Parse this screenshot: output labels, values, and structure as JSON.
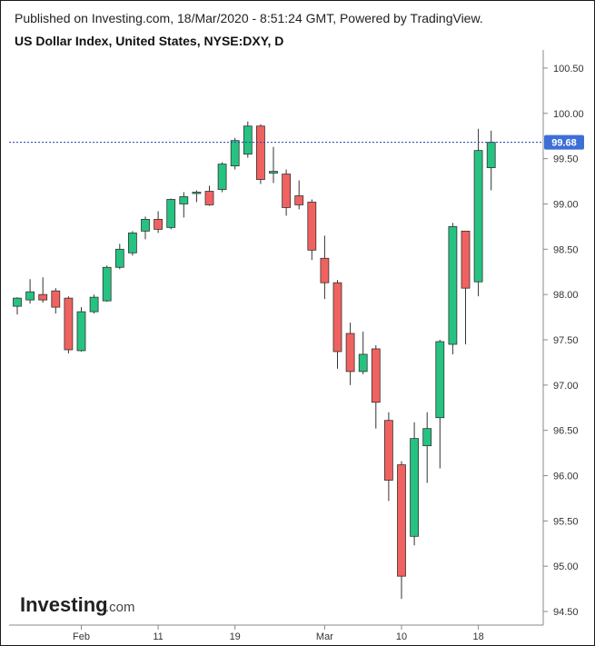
{
  "header": {
    "published": "Published on Investing.com, 18/Mar/2020 - 8:51:24 GMT, Powered by TradingView."
  },
  "logo": {
    "brand": "Investing",
    "suffix": ".com"
  },
  "chart_data": {
    "type": "candlestick",
    "title": "US Dollar Index, United States, NYSE:DXY, D",
    "ylim": [
      94.35,
      100.7
    ],
    "y_ticks": [
      "100.50",
      "100.00",
      "99.50",
      "99.00",
      "98.50",
      "98.00",
      "97.50",
      "97.00",
      "96.50",
      "96.00",
      "95.50",
      "95.00",
      "94.50"
    ],
    "x_ticks": [
      {
        "label": "Feb",
        "index": 5
      },
      {
        "label": "11",
        "index": 11
      },
      {
        "label": "19",
        "index": 17
      },
      {
        "label": "Mar",
        "index": 24
      },
      {
        "label": "10",
        "index": 30
      },
      {
        "label": "18",
        "index": 36
      }
    ],
    "last_price": 99.68,
    "last_price_label": "99.68",
    "colors": {
      "up": "#26c281",
      "down": "#f0625f",
      "border": "#333333",
      "price_line": "#1f3fa8",
      "price_tag": "#3d6fd6"
    },
    "candles": [
      {
        "date": "2020-01-27",
        "open": 97.87,
        "high": 97.97,
        "low": 97.78,
        "close": 97.96
      },
      {
        "date": "2020-01-28",
        "open": 97.94,
        "high": 98.17,
        "low": 97.9,
        "close": 98.03
      },
      {
        "date": "2020-01-29",
        "open": 98.0,
        "high": 98.19,
        "low": 97.91,
        "close": 97.94
      },
      {
        "date": "2020-01-30",
        "open": 98.04,
        "high": 98.07,
        "low": 97.79,
        "close": 97.86
      },
      {
        "date": "2020-01-31",
        "open": 97.96,
        "high": 97.98,
        "low": 97.35,
        "close": 97.39
      },
      {
        "date": "2020-02-03",
        "open": 97.38,
        "high": 97.86,
        "low": 97.37,
        "close": 97.81
      },
      {
        "date": "2020-02-04",
        "open": 97.81,
        "high": 98.0,
        "low": 97.79,
        "close": 97.97
      },
      {
        "date": "2020-02-05",
        "open": 97.93,
        "high": 98.32,
        "low": 97.92,
        "close": 98.3
      },
      {
        "date": "2020-02-06",
        "open": 98.3,
        "high": 98.56,
        "low": 98.28,
        "close": 98.5
      },
      {
        "date": "2020-02-07",
        "open": 98.46,
        "high": 98.7,
        "low": 98.43,
        "close": 98.68
      },
      {
        "date": "2020-02-10",
        "open": 98.7,
        "high": 98.86,
        "low": 98.61,
        "close": 98.83
      },
      {
        "date": "2020-02-11",
        "open": 98.83,
        "high": 98.92,
        "low": 98.68,
        "close": 98.72
      },
      {
        "date": "2020-02-12",
        "open": 98.74,
        "high": 99.06,
        "low": 98.72,
        "close": 99.05
      },
      {
        "date": "2020-02-13",
        "open": 99.0,
        "high": 99.13,
        "low": 98.85,
        "close": 99.08
      },
      {
        "date": "2020-02-14",
        "open": 99.12,
        "high": 99.15,
        "low": 99.02,
        "close": 99.13
      },
      {
        "date": "2020-02-17",
        "open": 99.14,
        "high": 99.2,
        "low": 98.98,
        "close": 98.99
      },
      {
        "date": "2020-02-18",
        "open": 99.16,
        "high": 99.46,
        "low": 99.13,
        "close": 99.44
      },
      {
        "date": "2020-02-19",
        "open": 99.42,
        "high": 99.73,
        "low": 99.38,
        "close": 99.7
      },
      {
        "date": "2020-02-20",
        "open": 99.55,
        "high": 99.91,
        "low": 99.51,
        "close": 99.86
      },
      {
        "date": "2020-02-21",
        "open": 99.86,
        "high": 99.88,
        "low": 99.22,
        "close": 99.27
      },
      {
        "date": "2020-02-24",
        "open": 99.34,
        "high": 99.63,
        "low": 99.23,
        "close": 99.36
      },
      {
        "date": "2020-02-25",
        "open": 99.33,
        "high": 99.38,
        "low": 98.87,
        "close": 98.96
      },
      {
        "date": "2020-02-26",
        "open": 99.09,
        "high": 99.26,
        "low": 98.94,
        "close": 98.99
      },
      {
        "date": "2020-02-27",
        "open": 99.02,
        "high": 99.05,
        "low": 98.38,
        "close": 98.49
      },
      {
        "date": "2020-02-28",
        "open": 98.4,
        "high": 98.65,
        "low": 97.95,
        "close": 98.13
      },
      {
        "date": "2020-03-02",
        "open": 98.13,
        "high": 98.16,
        "low": 97.18,
        "close": 97.37
      },
      {
        "date": "2020-03-03",
        "open": 97.57,
        "high": 97.69,
        "low": 97.0,
        "close": 97.15
      },
      {
        "date": "2020-03-04",
        "open": 97.15,
        "high": 97.59,
        "low": 97.12,
        "close": 97.34
      },
      {
        "date": "2020-03-05",
        "open": 97.4,
        "high": 97.44,
        "low": 96.52,
        "close": 96.81
      },
      {
        "date": "2020-03-06",
        "open": 96.61,
        "high": 96.7,
        "low": 95.72,
        "close": 95.95
      },
      {
        "date": "2020-03-09",
        "open": 96.12,
        "high": 96.16,
        "low": 94.64,
        "close": 94.89
      },
      {
        "date": "2020-03-10",
        "open": 95.33,
        "high": 96.59,
        "low": 95.23,
        "close": 96.41
      },
      {
        "date": "2020-03-11",
        "open": 96.33,
        "high": 96.7,
        "low": 95.92,
        "close": 96.52
      },
      {
        "date": "2020-03-12",
        "open": 96.64,
        "high": 97.5,
        "low": 96.08,
        "close": 97.48
      },
      {
        "date": "2020-03-13",
        "open": 97.45,
        "high": 98.79,
        "low": 97.34,
        "close": 98.75
      },
      {
        "date": "2020-03-16",
        "open": 98.7,
        "high": 98.7,
        "low": 97.45,
        "close": 98.07
      },
      {
        "date": "2020-03-17",
        "open": 98.14,
        "high": 99.83,
        "low": 97.98,
        "close": 99.59
      },
      {
        "date": "2020-03-18",
        "open": 99.4,
        "high": 99.81,
        "low": 99.15,
        "close": 99.68
      }
    ]
  }
}
